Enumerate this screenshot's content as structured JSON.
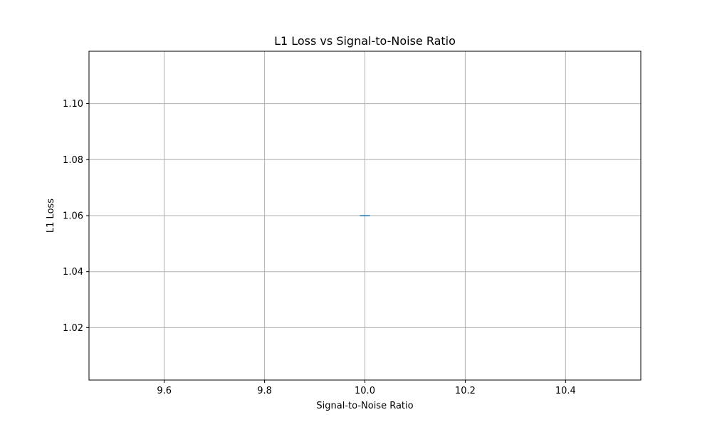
{
  "chart_data": {
    "type": "line",
    "title": "L1 Loss vs Signal-to-Noise Ratio",
    "xlabel": "Signal-to-Noise Ratio",
    "ylabel": "L1 Loss",
    "xlim": [
      9.45,
      10.55
    ],
    "ylim": [
      1.0013,
      1.1187
    ],
    "xticks": [
      9.6,
      9.8,
      10.0,
      10.2,
      10.4
    ],
    "xtick_labels": [
      "9.6",
      "9.8",
      "10.0",
      "10.2",
      "10.4"
    ],
    "yticks": [
      1.02,
      1.04,
      1.06,
      1.08,
      1.1
    ],
    "ytick_labels": [
      "1.02",
      "1.04",
      "1.06",
      "1.08",
      "1.10"
    ],
    "grid": true,
    "series": [
      {
        "x": [
          10.0
        ],
        "y": [
          1.06
        ],
        "color": "#1f77b4"
      }
    ]
  }
}
